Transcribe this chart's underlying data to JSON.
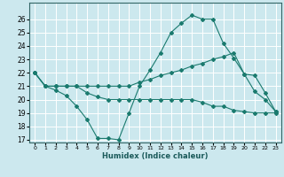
{
  "title": "",
  "xlabel": "Humidex (Indice chaleur)",
  "background_color": "#cce8ee",
  "grid_color": "#ffffff",
  "line_color": "#1a7a6e",
  "xlim": [
    -0.5,
    23.5
  ],
  "ylim": [
    16.8,
    27.2
  ],
  "yticks": [
    17,
    18,
    19,
    20,
    21,
    22,
    23,
    24,
    25,
    26
  ],
  "xticks": [
    0,
    1,
    2,
    3,
    4,
    5,
    6,
    7,
    8,
    9,
    10,
    11,
    12,
    13,
    14,
    15,
    16,
    17,
    18,
    19,
    20,
    21,
    22,
    23
  ],
  "line1_x": [
    0,
    1,
    2,
    3,
    4,
    5,
    6,
    7,
    8,
    9,
    10,
    11,
    12,
    13,
    14,
    15,
    16,
    17,
    18,
    19,
    20,
    21,
    22,
    23
  ],
  "line1_y": [
    22,
    21,
    20.7,
    20.3,
    19.5,
    18.5,
    17.1,
    17.1,
    17.0,
    19.0,
    21.0,
    22.2,
    23.5,
    25.0,
    25.7,
    26.3,
    26.0,
    26.0,
    24.2,
    23.1,
    21.9,
    20.6,
    20.0,
    19.1
  ],
  "line2_x": [
    0,
    1,
    2,
    3,
    4,
    5,
    6,
    7,
    8,
    9,
    10,
    11,
    12,
    13,
    14,
    15,
    16,
    17,
    18,
    19,
    20,
    21,
    22,
    23
  ],
  "line2_y": [
    22,
    21,
    21,
    21,
    21,
    21,
    21,
    21,
    21,
    21,
    21.3,
    21.5,
    21.8,
    22.0,
    22.2,
    22.5,
    22.7,
    23.0,
    23.2,
    23.5,
    21.9,
    21.8,
    20.5,
    19.1
  ],
  "line3_x": [
    0,
    1,
    2,
    3,
    4,
    5,
    6,
    7,
    8,
    9,
    10,
    11,
    12,
    13,
    14,
    15,
    16,
    17,
    18,
    19,
    20,
    21,
    22,
    23
  ],
  "line3_y": [
    22,
    21,
    21,
    21,
    21,
    20.5,
    20.2,
    20.0,
    20.0,
    20.0,
    20.0,
    20.0,
    20.0,
    20.0,
    20.0,
    20.0,
    19.8,
    19.5,
    19.5,
    19.2,
    19.1,
    19.0,
    19.0,
    19.0
  ]
}
